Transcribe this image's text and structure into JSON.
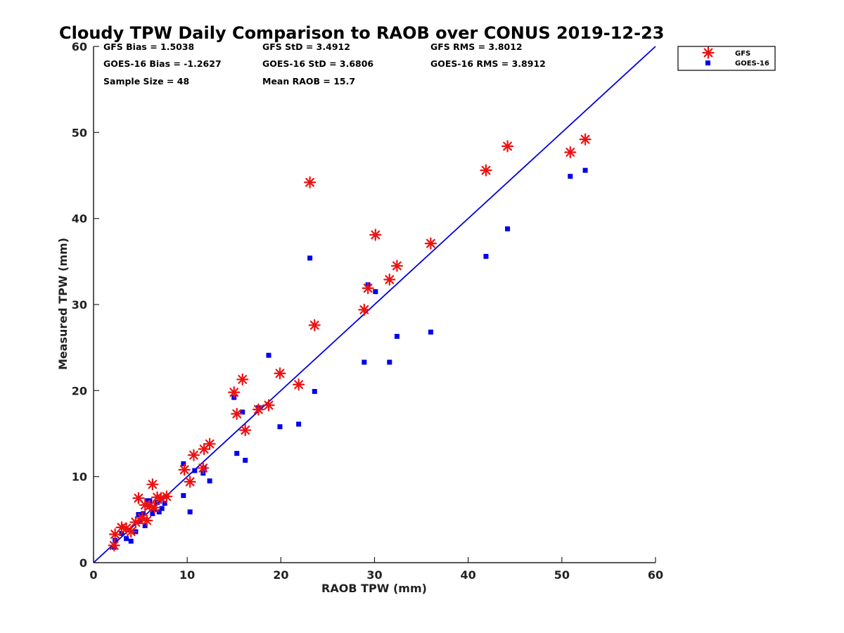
{
  "chart_data": {
    "type": "scatter",
    "title": "Cloudy TPW Daily Comparison to RAOB over CONUS 2019-12-23",
    "xlabel": "RAOB TPW (mm)",
    "ylabel": "Measured TPW (mm)",
    "xlim": [
      0,
      60
    ],
    "ylim": [
      0,
      60
    ],
    "xticks": [
      "0",
      "10",
      "20",
      "30",
      "40",
      "50",
      "60"
    ],
    "yticks": [
      "0",
      "10",
      "20",
      "30",
      "40",
      "50",
      "60"
    ],
    "grid": false,
    "legend_position": "top-right-outside",
    "reference_line": {
      "name": "1:1 line",
      "from": [
        0,
        0
      ],
      "to": [
        60,
        60
      ],
      "color": "#0000dd"
    },
    "stats": {
      "gfs_bias": "GFS Bias = 1.5038",
      "goes_bias": "GOES-16 Bias = -1.2627",
      "sample_size": "Sample Size = 48",
      "gfs_std": "GFS StD = 3.4912",
      "goes_std": "GOES-16 StD = 3.6806",
      "mean_raob": "Mean RAOB = 15.7",
      "gfs_rms": "GFS RMS = 3.8012",
      "goes_rms": "GOES-16 RMS = 3.8912"
    },
    "series": [
      {
        "name": "GFS",
        "marker": "asterisk",
        "color": "#ee1111",
        "points": [
          [
            2.2,
            2.0
          ],
          [
            2.3,
            3.3
          ],
          [
            3.0,
            4.1
          ],
          [
            3.5,
            4.0
          ],
          [
            4.0,
            3.6
          ],
          [
            4.5,
            4.7
          ],
          [
            4.8,
            7.5
          ],
          [
            5.2,
            5.2
          ],
          [
            5.5,
            6.7
          ],
          [
            5.7,
            4.9
          ],
          [
            6.0,
            6.6
          ],
          [
            6.3,
            9.1
          ],
          [
            6.5,
            6.4
          ],
          [
            6.8,
            7.6
          ],
          [
            7.2,
            7.5
          ],
          [
            7.8,
            7.7
          ],
          [
            9.7,
            10.8
          ],
          [
            10.3,
            9.4
          ],
          [
            10.7,
            12.5
          ],
          [
            11.7,
            11.0
          ],
          [
            11.8,
            13.2
          ],
          [
            12.4,
            13.8
          ],
          [
            15.0,
            19.8
          ],
          [
            15.3,
            17.3
          ],
          [
            15.9,
            21.3
          ],
          [
            16.2,
            15.4
          ],
          [
            17.6,
            17.8
          ],
          [
            18.7,
            18.3
          ],
          [
            19.9,
            22.0
          ],
          [
            21.9,
            20.7
          ],
          [
            23.1,
            44.2
          ],
          [
            23.6,
            27.6
          ],
          [
            28.9,
            29.4
          ],
          [
            29.3,
            31.9
          ],
          [
            30.1,
            38.1
          ],
          [
            31.6,
            32.9
          ],
          [
            32.4,
            34.5
          ],
          [
            36.0,
            37.1
          ],
          [
            41.9,
            45.6
          ],
          [
            44.2,
            48.4
          ],
          [
            50.9,
            47.7
          ],
          [
            52.5,
            49.2
          ]
        ]
      },
      {
        "name": "GOES-16",
        "marker": "square",
        "color": "#0000ee",
        "points": [
          [
            2.2,
            1.8
          ],
          [
            2.3,
            2.6
          ],
          [
            3.0,
            3.4
          ],
          [
            3.5,
            2.8
          ],
          [
            4.0,
            2.5
          ],
          [
            4.5,
            3.6
          ],
          [
            4.8,
            5.6
          ],
          [
            5.0,
            4.8
          ],
          [
            5.3,
            5.7
          ],
          [
            5.5,
            4.3
          ],
          [
            5.7,
            7.2
          ],
          [
            6.0,
            7.2
          ],
          [
            6.3,
            5.7
          ],
          [
            6.5,
            6.2
          ],
          [
            6.8,
            7.0
          ],
          [
            7.0,
            5.9
          ],
          [
            7.3,
            6.3
          ],
          [
            7.6,
            6.9
          ],
          [
            7.8,
            7.7
          ],
          [
            9.6,
            7.8
          ],
          [
            9.6,
            11.5
          ],
          [
            10.3,
            5.9
          ],
          [
            10.8,
            10.7
          ],
          [
            11.7,
            10.4
          ],
          [
            11.8,
            11.0
          ],
          [
            12.4,
            9.5
          ],
          [
            15.0,
            19.2
          ],
          [
            15.3,
            12.7
          ],
          [
            15.9,
            17.5
          ],
          [
            16.2,
            11.9
          ],
          [
            17.6,
            18.0
          ],
          [
            18.7,
            24.1
          ],
          [
            19.9,
            15.8
          ],
          [
            21.9,
            16.1
          ],
          [
            23.1,
            35.4
          ],
          [
            23.6,
            19.9
          ],
          [
            28.9,
            23.3
          ],
          [
            29.3,
            32.3
          ],
          [
            30.1,
            31.5
          ],
          [
            31.6,
            23.3
          ],
          [
            32.4,
            26.3
          ],
          [
            36.0,
            26.8
          ],
          [
            41.9,
            35.6
          ],
          [
            44.2,
            38.8
          ],
          [
            50.9,
            44.9
          ],
          [
            52.5,
            45.6
          ]
        ]
      }
    ]
  }
}
